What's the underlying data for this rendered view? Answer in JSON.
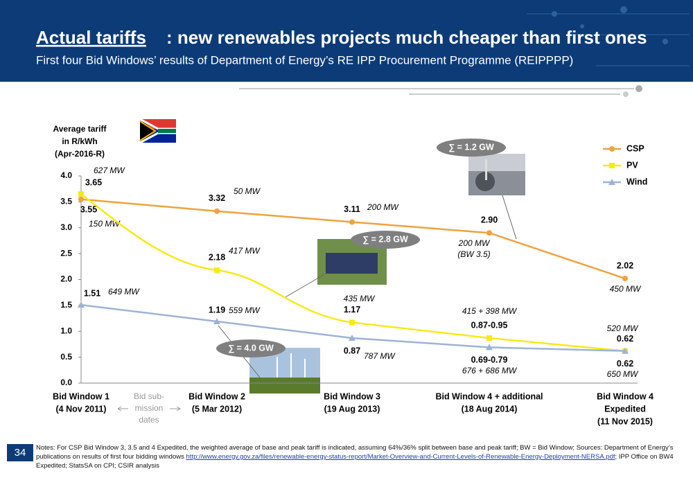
{
  "header": {
    "title_emphasis": "Actual tariffs",
    "title_rest": ": new renewables projects much cheaper than first ones",
    "subtitle": "First four Bid Windows’ results of Department of Energy’s RE IPP Procurement Programme (REIPPPP)"
  },
  "chart_data": {
    "type": "line",
    "y_label": [
      "Average tariff",
      "in R/kWh",
      "(Apr-2016-R)"
    ],
    "categories": [
      [
        "Bid Window 1",
        "(4 Nov 2011)"
      ],
      [
        "Bid Window 2",
        "(5 Mar 2012)"
      ],
      [
        "Bid Window 3",
        "(19 Aug 2013)"
      ],
      [
        "Bid Window 4 + additional",
        "(18 Aug 2014)"
      ],
      [
        "Bid Window 4",
        "Expedited",
        "(11 Nov 2015)"
      ]
    ],
    "series": [
      {
        "name": "CSP",
        "color": "#f0a23c",
        "marker": "circle",
        "values": [
          3.55,
          3.32,
          3.11,
          2.9,
          2.02
        ],
        "value_labels": [
          "3.55",
          "3.32",
          "3.11",
          "2.90",
          "2.02"
        ],
        "mw_labels": [
          [
            "150 MW"
          ],
          [
            "50 MW"
          ],
          [
            "200 MW"
          ],
          [
            "200 MW",
            "(BW 3.5)"
          ],
          [
            "450 MW"
          ]
        ]
      },
      {
        "name": "PV",
        "color": "#f8ea14",
        "marker": "square",
        "values": [
          3.65,
          2.18,
          1.17,
          0.87,
          0.62
        ],
        "value_labels": [
          "3.65",
          "2.18",
          "1.17",
          "0.87-0.95",
          "0.62"
        ],
        "mw_labels": [
          [
            "627 MW"
          ],
          [
            "417 MW"
          ],
          [
            "435 MW"
          ],
          [
            "415 + 398 MW"
          ],
          [
            "520 MW"
          ]
        ]
      },
      {
        "name": "Wind",
        "color": "#9db3d6",
        "marker": "triangle",
        "values": [
          1.51,
          1.19,
          0.87,
          0.69,
          0.62
        ],
        "value_labels": [
          "1.51",
          "1.19",
          "0.87",
          "0.69-0.79",
          "0.62"
        ],
        "mw_labels": [
          [
            "649 MW"
          ],
          [
            "559 MW"
          ],
          [
            "787 MW"
          ],
          [
            "676 + 686 MW"
          ],
          [
            "650 MW"
          ]
        ]
      }
    ],
    "ylim": [
      0,
      4
    ],
    "yticks": [
      {
        "value": 0,
        "label": "0.0"
      },
      {
        "value": 0.5,
        "label": "0.5"
      },
      {
        "value": 1,
        "label": "1.0"
      },
      {
        "value": 1.5,
        "label": "1.5"
      },
      {
        "value": 2,
        "label": "2.0"
      },
      {
        "value": 2.5,
        "label": "2.5"
      },
      {
        "value": 3,
        "label": "3.0"
      },
      {
        "value": 3.5,
        "label": "3.5"
      },
      {
        "value": 4,
        "label": "4.0"
      }
    ],
    "grid": false,
    "legend": "upper right",
    "submission_note": [
      "Bid sub-",
      "mission",
      "dates"
    ],
    "totals": [
      "∑ = 1.2 GW",
      "∑ = 2.8 GW",
      "∑ = 4.0 GW"
    ]
  },
  "footer": {
    "page_number": "34",
    "notes_before": "Notes: For CSP Bid Window 3, 3.5 and 4 Expedited, the weighted average of base and peak tariff is indicated, assuming 64%/36% split between base and peak tariff; BW = Bid Window; Sources: Department of Energy’s publications on results of first four bidding windows ",
    "notes_link": "http://www.energy.gov.za/files/renewable-energy-status-report/Market-Overview-and-Current-Levels-of-Renewable-Energy-Deployment-NERSA.pdf",
    "notes_after": "; IPP Office on BW4 Expedited; StatsSA on CPI; CSIR analysis"
  }
}
